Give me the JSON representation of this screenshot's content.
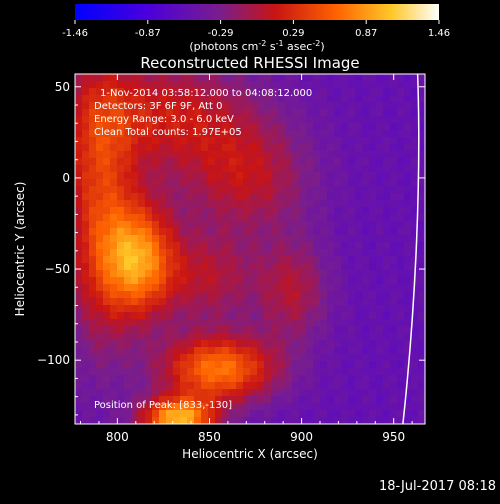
{
  "chart_data": {
    "type": "heatmap",
    "title": "Reconstructed RHESSI Image",
    "xlabel": "Heliocentric X (arcsec)",
    "ylabel": "Heliocentric Y (arcsec)",
    "xlim": [
      777,
      967
    ],
    "ylim": [
      -135,
      57
    ],
    "x_ticks": [
      800,
      850,
      900,
      950
    ],
    "y_ticks": [
      50,
      0,
      -50,
      -100
    ],
    "colorbar": {
      "ticks": [
        "-1.46",
        "-0.87",
        "-0.29",
        "0.29",
        "0.87",
        "1.46"
      ],
      "range": [
        -1.46,
        1.46
      ],
      "unit_text": "(photons cm",
      "unit_exp1": "-2",
      "unit_mid": " s",
      "unit_exp2": "-1",
      "unit_mid2": " asec",
      "unit_exp3": "-2",
      "unit_end": ")"
    },
    "annotations": [
      "1-Nov-2014 03:58:12.000 to 04:08:12.000",
      "Detectors: 3F 6F 9F, Att 0",
      "Energy Range: 3.0 - 6.0 keV",
      "Clean    Total counts: 1.97E+05"
    ],
    "position_label": "Position of Peak: [833,-130]",
    "sources": [
      {
        "x": 812,
        "y": -45,
        "amp": 1.3,
        "sx": 14,
        "sy": 22
      },
      {
        "x": 855,
        "y": -105,
        "amp": 1.25,
        "sx": 22,
        "sy": 13
      },
      {
        "x": 833,
        "y": -132,
        "amp": 1.5,
        "sx": 14,
        "sy": 8
      },
      {
        "x": 790,
        "y": -15,
        "amp": 0.85,
        "sx": 14,
        "sy": 55
      },
      {
        "x": 825,
        "y": 35,
        "amp": 0.7,
        "sx": 35,
        "sy": 22
      },
      {
        "x": 870,
        "y": 0,
        "amp": 0.6,
        "sx": 25,
        "sy": 22
      },
      {
        "x": 895,
        "y": -62,
        "amp": 0.55,
        "sx": 14,
        "sy": 20
      },
      {
        "x": 850,
        "y": -55,
        "amp": 0.55,
        "sx": 18,
        "sy": 18
      }
    ],
    "limb_curve": [
      [
        963,
        57
      ],
      [
        965,
        0
      ],
      [
        962,
        -70
      ],
      [
        955,
        -135
      ]
    ]
  },
  "footer": {
    "timestamp": "18-Jul-2017 08:18"
  }
}
